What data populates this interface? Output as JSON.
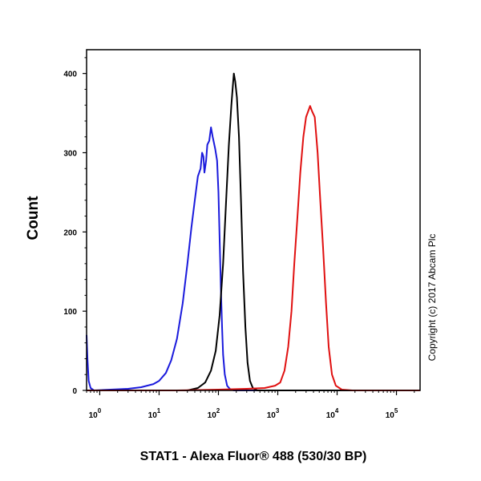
{
  "chart_data": {
    "type": "line",
    "xlabel": "STAT1 - Alexa Fluor® 488 (530/30 BP)",
    "ylabel": "Count",
    "copyright": "Copyright (c) 2017 Abcam Plc",
    "x_scale": "log",
    "xlim": [
      0.6,
      250000
    ],
    "ylim": [
      0,
      430
    ],
    "x_ticks": [
      {
        "value": 1,
        "base": "10",
        "exp": "0"
      },
      {
        "value": 10,
        "base": "10",
        "exp": "1"
      },
      {
        "value": 100,
        "base": "10",
        "exp": "2"
      },
      {
        "value": 1000,
        "base": "10",
        "exp": "3"
      },
      {
        "value": 10000,
        "base": "10",
        "exp": "4"
      },
      {
        "value": 100000,
        "base": "10",
        "exp": "5"
      }
    ],
    "y_ticks": [
      0,
      100,
      200,
      300,
      400
    ],
    "grid": false,
    "series": [
      {
        "color": "#1a1adc",
        "points": [
          [
            0.6,
            70
          ],
          [
            0.62,
            40
          ],
          [
            0.65,
            12
          ],
          [
            0.7,
            3
          ],
          [
            0.8,
            0
          ],
          [
            3,
            2
          ],
          [
            5,
            4
          ],
          [
            8,
            8
          ],
          [
            10,
            12
          ],
          [
            13,
            22
          ],
          [
            16,
            38
          ],
          [
            20,
            65
          ],
          [
            25,
            110
          ],
          [
            30,
            160
          ],
          [
            35,
            205
          ],
          [
            40,
            240
          ],
          [
            45,
            270
          ],
          [
            50,
            280
          ],
          [
            53,
            300
          ],
          [
            56,
            295
          ],
          [
            58,
            275
          ],
          [
            62,
            290
          ],
          [
            65,
            310
          ],
          [
            70,
            315
          ],
          [
            75,
            332
          ],
          [
            80,
            320
          ],
          [
            88,
            305
          ],
          [
            95,
            290
          ],
          [
            100,
            250
          ],
          [
            105,
            190
          ],
          [
            110,
            130
          ],
          [
            115,
            80
          ],
          [
            120,
            45
          ],
          [
            128,
            20
          ],
          [
            140,
            6
          ],
          [
            155,
            2
          ],
          [
            180,
            0
          ],
          [
            250000,
            0
          ]
        ]
      },
      {
        "color": "#000000",
        "points": [
          [
            0.6,
            0
          ],
          [
            30,
            0
          ],
          [
            45,
            3
          ],
          [
            60,
            10
          ],
          [
            75,
            25
          ],
          [
            90,
            50
          ],
          [
            105,
            95
          ],
          [
            120,
            160
          ],
          [
            135,
            240
          ],
          [
            150,
            310
          ],
          [
            165,
            360
          ],
          [
            175,
            385
          ],
          [
            182,
            400
          ],
          [
            192,
            390
          ],
          [
            205,
            370
          ],
          [
            222,
            320
          ],
          [
            240,
            240
          ],
          [
            260,
            150
          ],
          [
            285,
            80
          ],
          [
            310,
            35
          ],
          [
            340,
            12
          ],
          [
            380,
            3
          ],
          [
            450,
            0
          ],
          [
            250000,
            0
          ]
        ]
      },
      {
        "color": "#e01010",
        "points": [
          [
            0.6,
            0
          ],
          [
            20,
            0
          ],
          [
            100,
            1
          ],
          [
            300,
            2
          ],
          [
            600,
            3
          ],
          [
            900,
            6
          ],
          [
            1100,
            10
          ],
          [
            1300,
            25
          ],
          [
            1500,
            55
          ],
          [
            1700,
            100
          ],
          [
            1900,
            160
          ],
          [
            2150,
            220
          ],
          [
            2400,
            275
          ],
          [
            2700,
            320
          ],
          [
            3000,
            345
          ],
          [
            3350,
            355
          ],
          [
            3500,
            359
          ],
          [
            3800,
            352
          ],
          [
            4200,
            345
          ],
          [
            4700,
            300
          ],
          [
            5200,
            240
          ],
          [
            5800,
            180
          ],
          [
            6500,
            110
          ],
          [
            7200,
            55
          ],
          [
            8200,
            20
          ],
          [
            9500,
            6
          ],
          [
            12000,
            1
          ],
          [
            18000,
            0
          ],
          [
            250000,
            0
          ]
        ]
      }
    ]
  }
}
